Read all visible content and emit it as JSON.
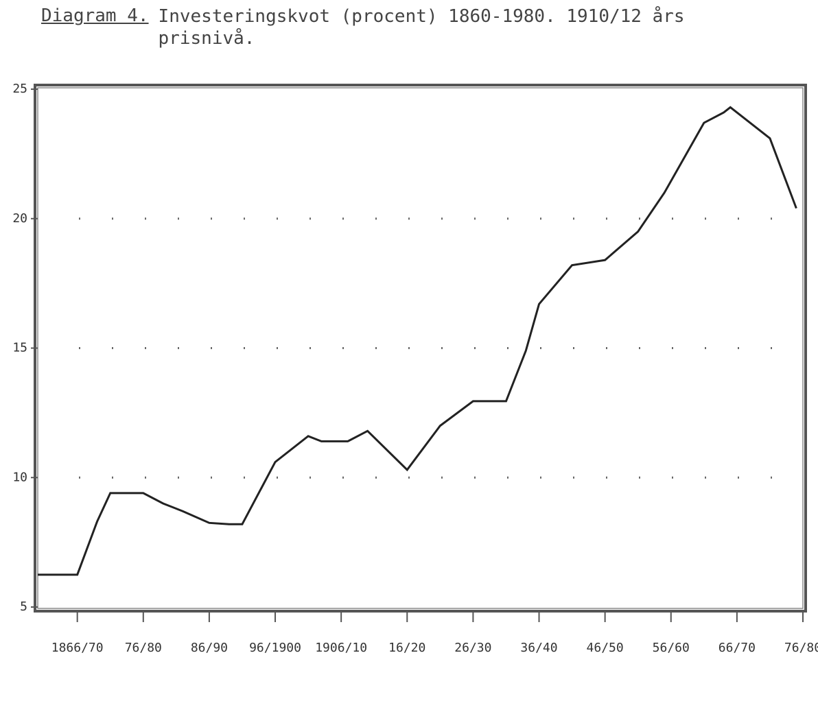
{
  "chart_data": {
    "type": "line",
    "title": "Diagram 4.",
    "subtitle": "Investeringskvot (procent) 1860-1980. 1910/12 års prisnivå.",
    "x": [
      1862,
      1868,
      1871,
      1873,
      1878,
      1881,
      1884,
      1888,
      1891,
      1893,
      1898,
      1903,
      1905,
      1909,
      1912,
      1918,
      1923,
      1928,
      1933,
      1936,
      1938,
      1943,
      1948,
      1953,
      1957,
      1963,
      1966,
      1967,
      1973,
      1977
    ],
    "values": [
      6.25,
      6.25,
      8.3,
      9.4,
      9.4,
      9.0,
      8.7,
      8.25,
      8.2,
      8.2,
      10.6,
      11.6,
      11.4,
      11.4,
      11.8,
      10.3,
      12.0,
      12.95,
      12.95,
      14.9,
      16.7,
      18.2,
      18.4,
      19.5,
      21.0,
      23.7,
      24.1,
      24.3,
      23.1,
      20.4
    ],
    "color": "#222222",
    "xlim": [
      1862,
      1978
    ],
    "xticks": [
      {
        "value": 1868,
        "label": "1866/70"
      },
      {
        "value": 1878,
        "label": "76/80"
      },
      {
        "value": 1888,
        "label": "86/90"
      },
      {
        "value": 1898,
        "label": "96/1900"
      },
      {
        "value": 1908,
        "label": "1906/10"
      },
      {
        "value": 1918,
        "label": "16/20"
      },
      {
        "value": 1928,
        "label": "26/30"
      },
      {
        "value": 1938,
        "label": "36/40"
      },
      {
        "value": 1948,
        "label": "46/50"
      },
      {
        "value": 1958,
        "label": "56/60"
      },
      {
        "value": 1968,
        "label": "66/70"
      },
      {
        "value": 1978,
        "label": "76/80"
      }
    ],
    "ylim": [
      5,
      25
    ],
    "yticks": [
      5,
      10,
      15,
      20,
      25
    ],
    "grid": true
  }
}
